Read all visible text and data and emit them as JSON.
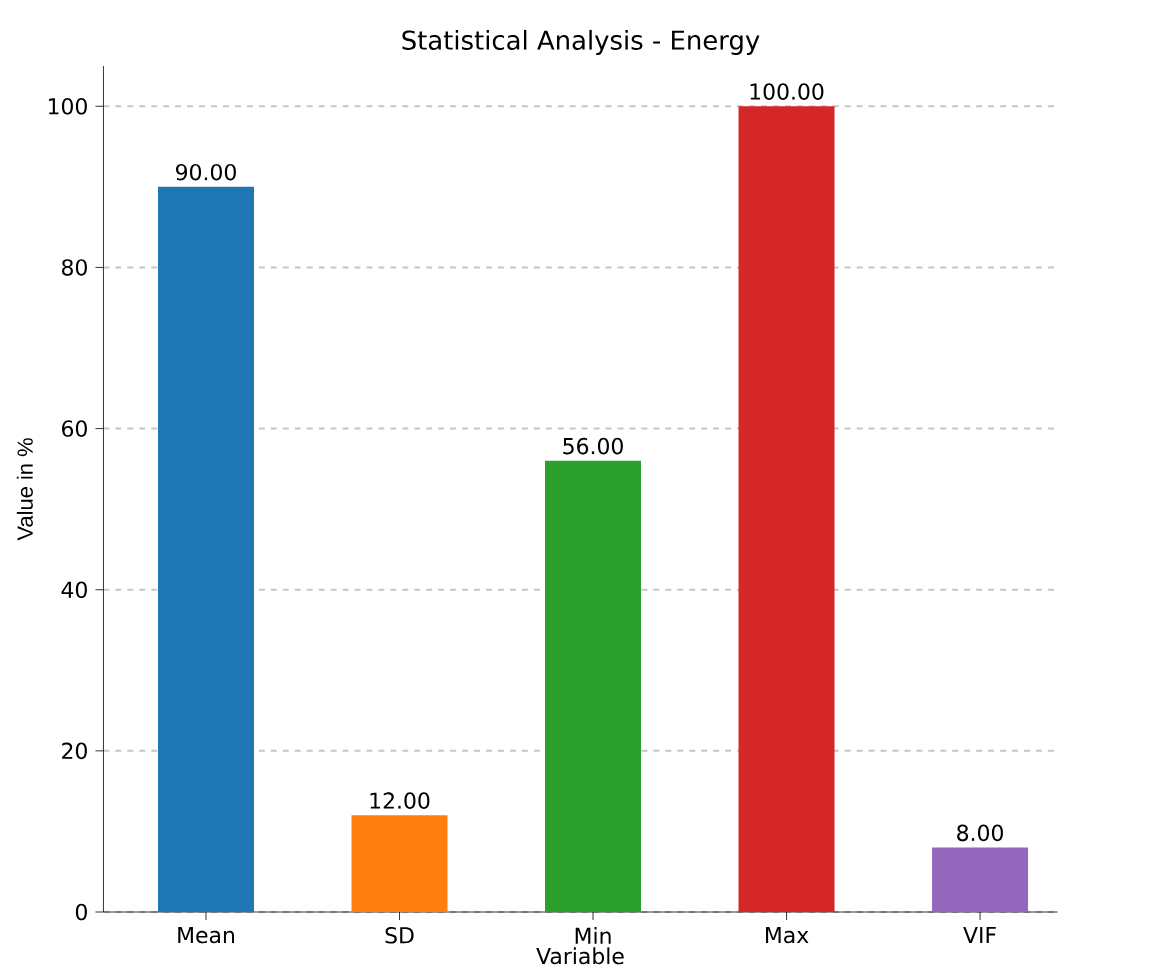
{
  "chart_data": {
    "type": "bar",
    "title": "Statistical Analysis - Energy",
    "xlabel": "Variable",
    "ylabel": "Value in %",
    "categories": [
      "Mean",
      "SD",
      "Min",
      "Max",
      "VIF"
    ],
    "values": [
      90,
      12,
      56,
      100,
      8
    ],
    "colors": [
      "#1f77b4",
      "#ff7f0e",
      "#2ca02c",
      "#d62728",
      "#9467bd"
    ],
    "value_labels": [
      "90.00",
      "12.00",
      "56.00",
      "100.00",
      "8.00"
    ],
    "ylim": [
      0,
      105
    ],
    "yticks": [
      0,
      20,
      40,
      60,
      80,
      100
    ],
    "grid": "y"
  }
}
